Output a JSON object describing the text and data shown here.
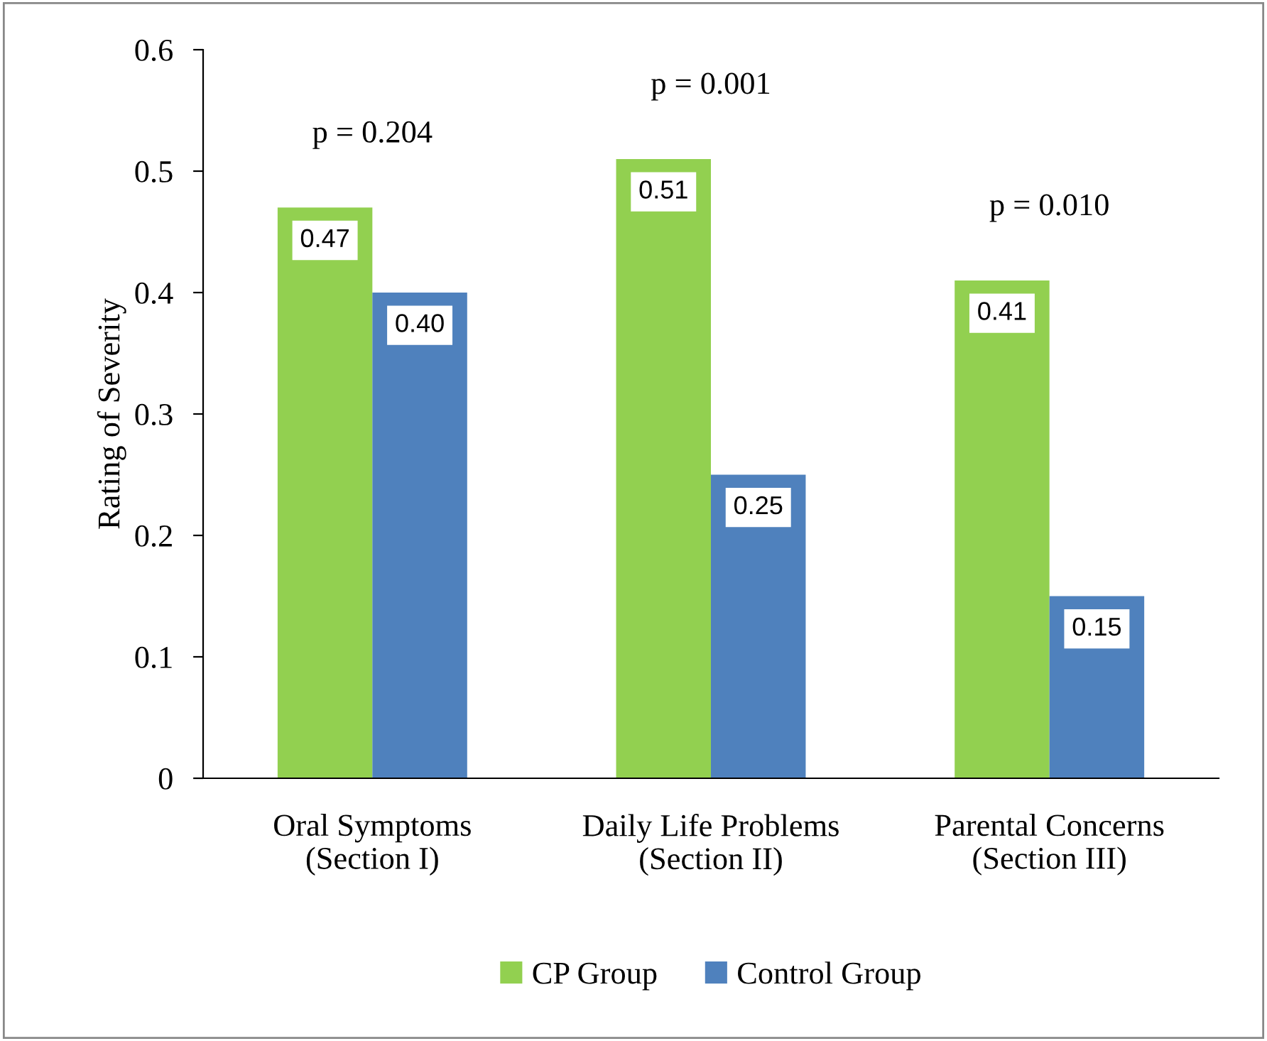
{
  "chart_data": {
    "type": "bar",
    "ylabel": "Rating of Severity",
    "categories": [
      "Oral Symptoms\n(Section I)",
      "Daily Life Problems\n(Section II)",
      "Parental Concerns\n(Section III)"
    ],
    "series": [
      {
        "name": "CP Group",
        "color": "#92d050",
        "values": [
          0.47,
          0.51,
          0.41
        ],
        "value_labels": [
          "0.47",
          "0.51",
          "0.41"
        ]
      },
      {
        "name": "Control Group",
        "color": "#4f81bd",
        "values": [
          0.4,
          0.25,
          0.15
        ],
        "value_labels": [
          "0.40",
          "0.25",
          "0.15"
        ]
      }
    ],
    "ylim": [
      0,
      0.6
    ],
    "yticks": [
      {
        "value": 0,
        "label": "0"
      },
      0.1,
      0.2,
      0.3,
      0.4,
      0.5,
      0.6
    ],
    "grid": false,
    "legend": "bottom",
    "annotations": [
      "p = 0.204",
      "p = 0.001",
      "p = 0.010"
    ]
  }
}
